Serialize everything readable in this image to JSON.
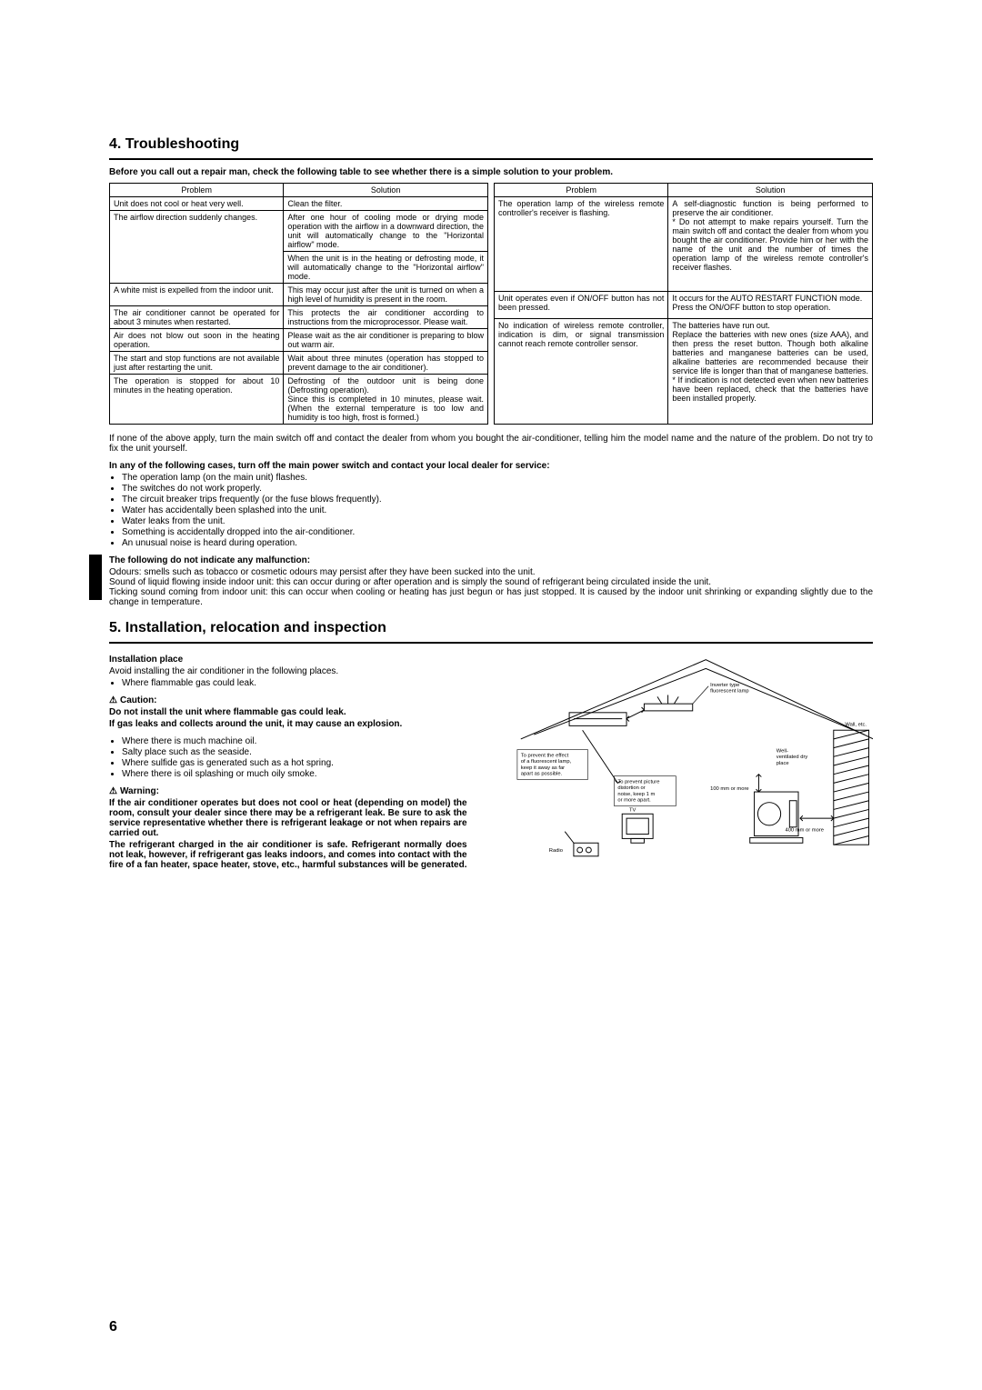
{
  "section4": {
    "title": "4. Troubleshooting",
    "intro": "Before you call out a repair man, check the following table to see whether there is a simple solution to your problem.",
    "header_problem": "Problem",
    "header_solution": "Solution",
    "table_left": [
      {
        "p": "Unit does not cool or heat very well.",
        "s": "Clean the filter."
      },
      {
        "p": "The airflow direction suddenly changes.",
        "s": "After one hour of cooling mode or drying mode operation with the airflow in a downward direction, the unit will automatically change to the \"Horizontal airflow\" mode."
      },
      {
        "p": "",
        "s": "When the unit is in the heating or defrosting mode, it will automatically change to the \"Horizontal airflow\" mode."
      },
      {
        "p": "A white mist is expelled from the indoor unit.",
        "s": "This may occur just after the unit is turned on when a high level of humidity is present in the room."
      },
      {
        "p": "The air conditioner cannot be operated for about 3 minutes when restarted.",
        "s": "This protects the air conditioner according to instructions from the microprocessor. Please wait."
      },
      {
        "p": "Air does not blow out soon in the heating operation.",
        "s": "Please wait as the air conditioner is preparing to blow out warm air."
      },
      {
        "p": "The start and stop functions are not available just after restarting the unit.",
        "s": "Wait about three minutes (operation has stopped to prevent damage to the air conditioner)."
      },
      {
        "p": "The operation is stopped for about 10 minutes in the heating operation.",
        "s": "Defrosting of the outdoor unit is being done (Defrosting operation).\nSince this is completed in 10 minutes, please wait. (When the external temperature is too low and humidity is too high, frost is formed.)"
      }
    ],
    "table_right": [
      {
        "p": "The operation lamp of the wireless remote controller's receiver is flashing.",
        "s": "A self-diagnostic function is being performed to preserve the air conditioner.\n* Do not attempt to make repairs yourself. Turn the main switch off and contact the dealer from whom you bought the air conditioner. Provide him or her with the name of the unit and the number of times the operation lamp of the wireless remote controller's receiver flashes."
      },
      {
        "p": "Unit operates even if ON/OFF button has not been pressed.",
        "s": "It occurs for the AUTO RESTART FUNCTION mode.\nPress the ON/OFF button to stop operation."
      },
      {
        "p": "No indication of wireless remote controller, indication is dim, or signal transmission cannot reach remote controller sensor.",
        "s": "The batteries have run out.\nReplace the batteries with new ones (size AAA), and then press the reset button. Though both alkaline batteries and manganese batteries can be used, alkaline batteries are recommended because their service life is longer than that of manganese batteries.\n* If indication is not detected even when new batteries have been replaced, check that the batteries have been installed properly."
      }
    ],
    "after_table": "If none of the above apply, turn the main switch off and contact the dealer from whom you bought the air-conditioner, telling him the model name and the nature of the problem. Do not try to fix the unit yourself.",
    "service_bold": "In any of the following cases, turn off the main power switch and contact your local dealer for service:",
    "service_list": [
      "The operation lamp (on the main unit) flashes.",
      "The switches do not work properly.",
      "The circuit breaker trips frequently (or the fuse blows frequently).",
      "Water has accidentally been splashed into the unit.",
      "Water leaks from the unit.",
      "Something is accidentally dropped into the air-conditioner.",
      "An unusual noise is heard during operation."
    ],
    "nomalf_bold": "The following do not indicate any malfunction:",
    "nomalf_lines": [
      "Odours: smells such as tobacco or cosmetic odours may persist after they have been sucked into the unit.",
      "Sound of liquid flowing inside indoor unit: this can occur during or after operation and is simply the sound of refrigerant being circulated inside the unit.",
      "Ticking sound coming from indoor unit: this can occur when cooling or heating has just begun or has just stopped. It is caused by the indoor unit shrinking or expanding slightly due to the change in temperature."
    ]
  },
  "section5": {
    "title": "5. Installation, relocation and inspection",
    "install_place_bold": "Installation place",
    "avoid_line": "Avoid installing the air conditioner in the following places.",
    "avoid1": "Where flammable gas could leak.",
    "caution_label": "Caution:",
    "caution_line1": "Do not install the unit where flammable gas could leak.",
    "caution_line2": "If gas leaks and collects around the unit, it may cause an explosion.",
    "avoid_list2": [
      "Where there is much machine oil.",
      "Salty place such as the seaside.",
      "Where sulfide gas is generated such as a hot spring.",
      "Where there is oil splashing or much oily smoke."
    ],
    "warning_label": "Warning:",
    "warning_p1": "If the air conditioner operates but does not cool or heat (depending on model) the room, consult your dealer since there may be a refrigerant leak. Be sure to ask the service representative whether there is refrigerant leakage or not when repairs are carried out.",
    "warning_p2": "The refrigerant charged in the air conditioner is safe. Refrigerant normally does not leak, however, if refrigerant gas leaks indoors, and comes into contact with the fire of a fan heater, space heater, stove, etc., harmful substances will be generated.",
    "diagram_labels": {
      "inverter": "Inverter type\nfluorescent lamp",
      "wall": "Wall, etc.",
      "fluorescent_note": "To prevent the effect of a fluorescent lamp, keep it away as far apart as possible.",
      "tv_note": "To prevent picture distortion or noise, keep 1 m or more apart.",
      "ventilated": "Well-ventilated dry place",
      "dist100": "100 mm or more",
      "dist400": "400 mm or more",
      "tv": "TV",
      "radio": "Radio"
    }
  },
  "page_number": "6"
}
